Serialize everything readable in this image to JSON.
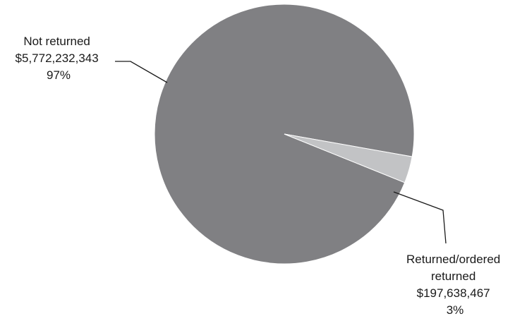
{
  "chart_data": {
    "type": "pie",
    "title": "",
    "slices": [
      {
        "label_lines": [
          "Not returned",
          "$5,772,232,343",
          "97%"
        ],
        "value": 5772232343,
        "percent": 97,
        "color": "#808083"
      },
      {
        "label_lines": [
          "Returned/ordered",
          "returned",
          "$197,638,467",
          "3%"
        ],
        "value": 197638467,
        "percent": 3,
        "color": "#c2c3c5"
      }
    ],
    "legend": "none"
  }
}
